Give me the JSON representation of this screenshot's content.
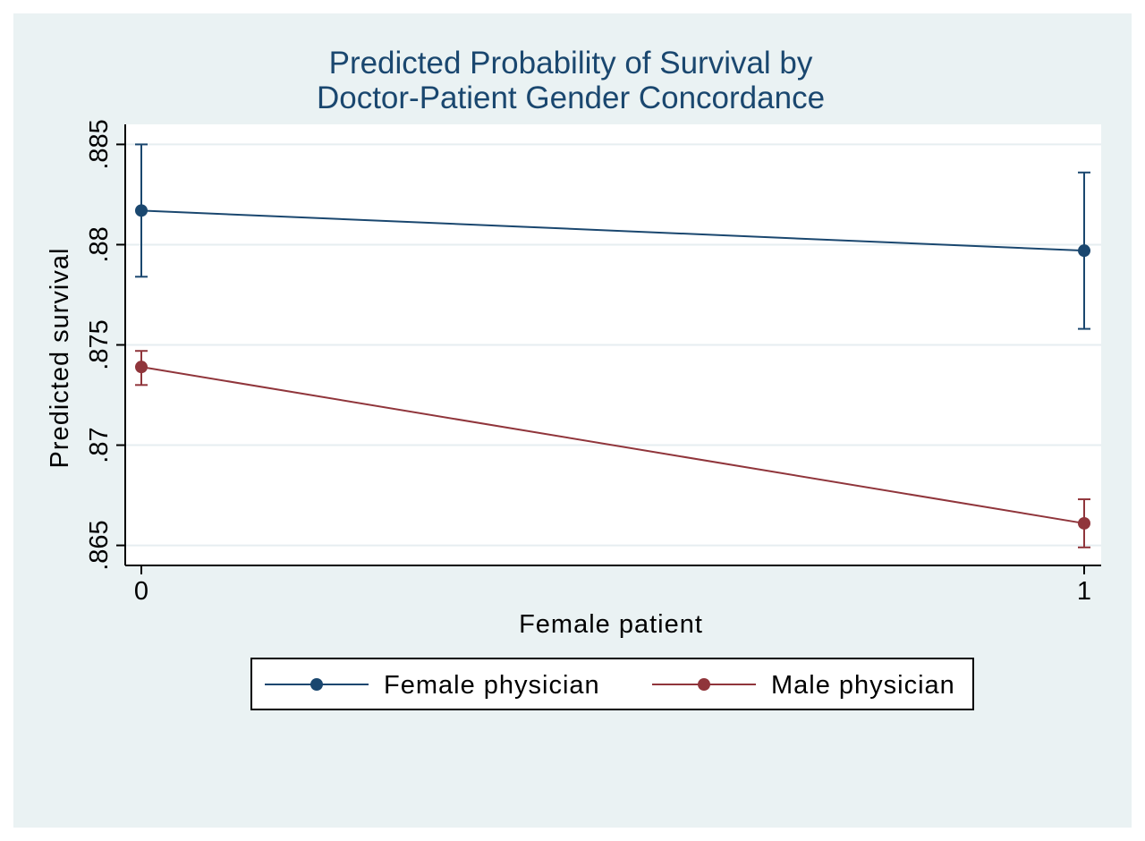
{
  "chart_data": {
    "type": "line",
    "title": [
      "Predicted Probability of Survival by",
      "Doctor-Patient Gender Concordance"
    ],
    "xlabel": "Female patient",
    "ylabel": "Predicted survival",
    "x": [
      0,
      1
    ],
    "x_tick_labels": [
      "0",
      "1"
    ],
    "xlim": [
      0,
      1
    ],
    "ylim": [
      0.864,
      0.886
    ],
    "y_ticks": [
      0.865,
      0.87,
      0.875,
      0.88,
      0.885
    ],
    "y_tick_labels": [
      ".865",
      ".87",
      ".875",
      ".88",
      ".885"
    ],
    "grid": true,
    "legend_position": "bottom",
    "series": [
      {
        "name": "Female physician",
        "color": "#1a476f",
        "values": [
          0.8817,
          0.8797
        ],
        "ci_low": [
          0.8784,
          0.8758
        ],
        "ci_high": [
          0.885,
          0.8836
        ]
      },
      {
        "name": "Male physician",
        "color": "#90353b",
        "values": [
          0.8739,
          0.8661
        ],
        "ci_low": [
          0.873,
          0.8649
        ],
        "ci_high": [
          0.8747,
          0.8673
        ]
      }
    ]
  }
}
